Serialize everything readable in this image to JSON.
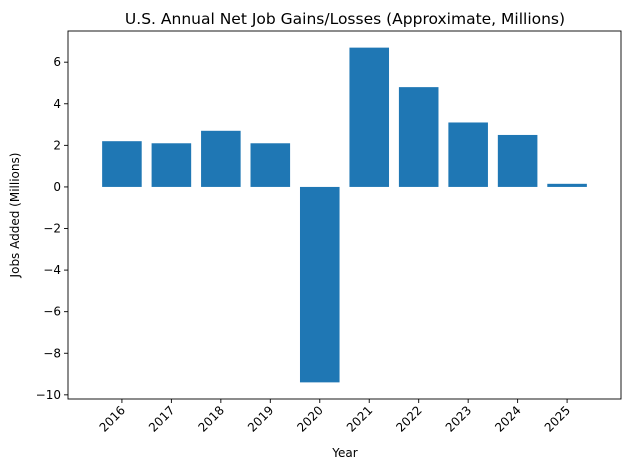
{
  "chart_data": {
    "type": "bar",
    "title": "U.S. Annual Net Job Gains/Losses (Approximate, Millions)",
    "xlabel": "Year",
    "ylabel": "Jobs Added (Millions)",
    "categories": [
      "2016",
      "2017",
      "2018",
      "2019",
      "2020",
      "2021",
      "2022",
      "2023",
      "2024",
      "2025"
    ],
    "values": [
      2.2,
      2.1,
      2.7,
      2.1,
      -9.4,
      6.7,
      4.8,
      3.1,
      2.5,
      0.15
    ],
    "ylim": [
      -10.2,
      7.5
    ],
    "yticks": [
      -10,
      -8,
      -6,
      -4,
      -2,
      0,
      2,
      4,
      6
    ],
    "ytick_labels": [
      "−10",
      "−8",
      "−6",
      "−4",
      "−2",
      "0",
      "2",
      "4",
      "6"
    ],
    "bar_color": "#1f77b4",
    "grid": false,
    "xtick_rotation": 45
  }
}
